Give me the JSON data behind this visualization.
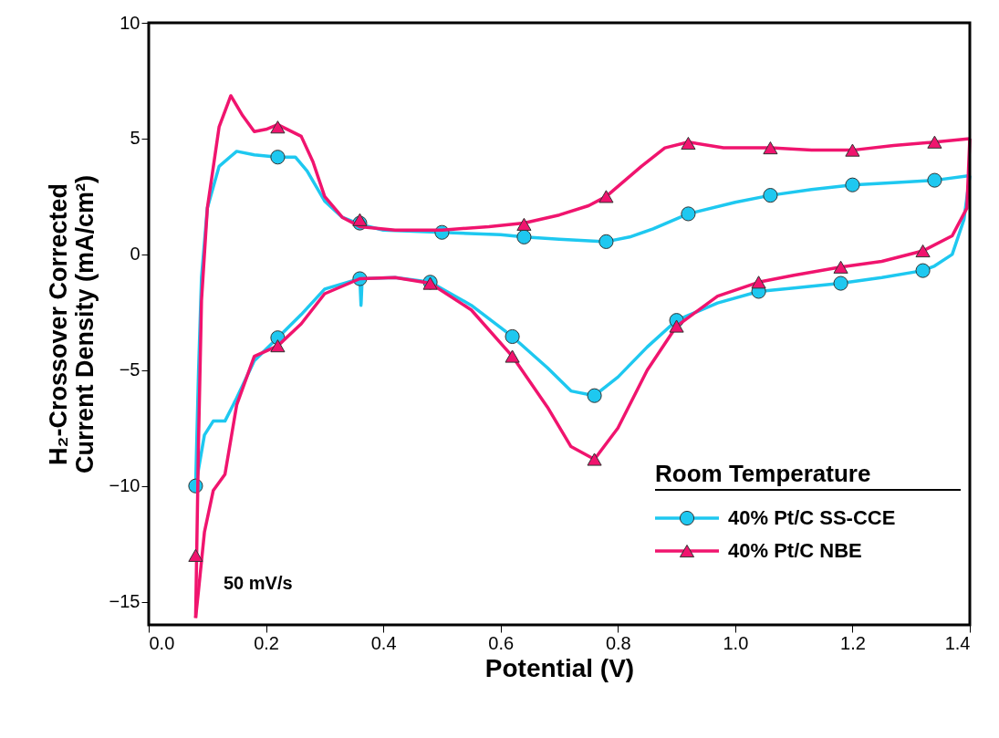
{
  "chart_data": {
    "type": "line",
    "xlabel": "Potential (V)",
    "ylabel": "H₂-Crossover Corrected\nCurrent Density (mA/cm²)",
    "legend_title": "Room Temperature",
    "legend": "bottom right",
    "grid": false,
    "line_style": "solid",
    "annotations": [
      "50 mV/s"
    ],
    "xlim": [
      0,
      1.4
    ],
    "xticks": [
      {
        "value": 0,
        "label": "0.0"
      },
      {
        "value": 0.2,
        "label": "0.2"
      },
      {
        "value": 0.4,
        "label": "0.4"
      },
      {
        "value": 0.6,
        "label": "0.6"
      },
      {
        "value": 0.8,
        "label": "0.8"
      },
      {
        "value": 1.0,
        "label": "1.0"
      },
      {
        "value": 1.2,
        "label": "1.2"
      },
      {
        "value": 1.4,
        "label": "1.4"
      }
    ],
    "ylim": [
      -16,
      10
    ],
    "yticks": [
      -15,
      -10,
      -5,
      0,
      5,
      10
    ],
    "series": [
      {
        "name": "40% Pt/C SS-CCE",
        "color": "#1ec8f0",
        "type": "line",
        "marker": "none",
        "x": [
          0.08,
          0.085,
          0.09,
          0.1,
          0.12,
          0.15,
          0.18,
          0.22,
          0.25,
          0.27,
          0.3,
          0.33,
          0.36,
          0.4,
          0.5,
          0.6,
          0.64,
          0.7,
          0.78,
          0.82,
          0.86,
          0.92,
          1.0,
          1.06,
          1.13,
          1.2,
          1.27,
          1.34,
          1.4
        ],
        "values": [
          -10,
          -5,
          -1,
          2,
          3.8,
          4.45,
          4.3,
          4.2,
          4.2,
          3.6,
          2.3,
          1.6,
          1.3,
          1.05,
          0.95,
          0.85,
          0.75,
          0.65,
          0.55,
          0.75,
          1.1,
          1.75,
          2.25,
          2.55,
          2.8,
          3.0,
          3.1,
          3.2,
          3.4
        ]
      },
      {
        "color": "#1ec8f0",
        "type": "line",
        "marker": "none",
        "x": [
          0.08,
          0.095,
          0.11,
          0.13,
          0.15,
          0.18,
          0.22,
          0.26,
          0.3,
          0.36,
          0.362,
          0.364,
          0.42,
          0.48,
          0.55,
          0.62,
          0.68,
          0.72,
          0.76,
          0.8,
          0.85,
          0.9,
          0.97,
          1.04,
          1.1,
          1.18,
          1.25,
          1.32,
          1.34,
          1.37,
          1.39,
          1.4
        ],
        "values": [
          -10,
          -7.8,
          -7.2,
          -7.2,
          -6.2,
          -4.6,
          -3.6,
          -2.6,
          -1.5,
          -1.05,
          -2.2,
          -1.05,
          -1.0,
          -1.2,
          -2.2,
          -3.55,
          -4.9,
          -5.9,
          -6.1,
          -5.3,
          -4,
          -2.85,
          -2.1,
          -1.6,
          -1.45,
          -1.25,
          -1.0,
          -0.7,
          -0.5,
          0,
          1.5,
          3.4
        ]
      },
      {
        "color": "#1ec8f0",
        "type": "scatter",
        "marker": "circle",
        "x": [
          0.08,
          0.22,
          0.36,
          0.5,
          0.64,
          0.78,
          0.92,
          1.06,
          1.2,
          1.34,
          1.32,
          1.18,
          1.04,
          0.9,
          0.76,
          0.62,
          0.48,
          0.36,
          0.22
        ],
        "values": [
          -10,
          4.2,
          1.35,
          0.95,
          0.75,
          0.55,
          1.75,
          2.55,
          3.0,
          3.2,
          -0.7,
          -1.25,
          -1.6,
          -2.85,
          -6.1,
          -3.55,
          -1.2,
          -1.05,
          -3.6
        ]
      },
      {
        "name": "40% Pt/C NBE",
        "color": "#f0146e",
        "type": "line",
        "marker": "none",
        "x": [
          0.08,
          0.085,
          0.09,
          0.1,
          0.12,
          0.14,
          0.16,
          0.18,
          0.2,
          0.22,
          0.26,
          0.28,
          0.3,
          0.33,
          0.36,
          0.42,
          0.5,
          0.58,
          0.64,
          0.7,
          0.75,
          0.78,
          0.84,
          0.88,
          0.92,
          0.98,
          1.06,
          1.13,
          1.2,
          1.27,
          1.34,
          1.4
        ],
        "values": [
          -15.7,
          -8,
          -2,
          2,
          5.5,
          6.85,
          6,
          5.3,
          5.4,
          5.6,
          5.1,
          4,
          2.5,
          1.6,
          1.2,
          1.05,
          1.05,
          1.2,
          1.35,
          1.7,
          2.1,
          2.5,
          3.8,
          4.6,
          4.85,
          4.6,
          4.6,
          4.5,
          4.5,
          4.7,
          4.85,
          5.0
        ]
      },
      {
        "color": "#f0146e",
        "type": "line",
        "marker": "none",
        "x": [
          0.08,
          0.085,
          0.095,
          0.11,
          0.13,
          0.15,
          0.18,
          0.22,
          0.26,
          0.3,
          0.36,
          0.42,
          0.48,
          0.55,
          0.62,
          0.68,
          0.72,
          0.76,
          0.8,
          0.85,
          0.9,
          0.97,
          1.04,
          1.1,
          1.18,
          1.25,
          1.32,
          1.37,
          1.395,
          1.4
        ],
        "values": [
          -15.7,
          -14.5,
          -12,
          -10.2,
          -9.5,
          -6.5,
          -4.4,
          -3.95,
          -3,
          -1.7,
          -1.05,
          -1.0,
          -1.25,
          -2.4,
          -4.4,
          -6.6,
          -8.3,
          -8.85,
          -7.5,
          -5,
          -3.1,
          -1.8,
          -1.2,
          -0.9,
          -0.55,
          -0.3,
          0.15,
          0.8,
          2,
          5.0
        ]
      },
      {
        "color": "#f0146e",
        "type": "scatter",
        "marker": "triangle",
        "x": [
          0.08,
          0.22,
          0.36,
          0.64,
          0.78,
          0.92,
          1.06,
          1.2,
          1.34,
          1.32,
          1.18,
          1.04,
          0.9,
          0.76,
          0.62,
          0.48,
          0.22
        ],
        "values": [
          -13,
          5.5,
          1.5,
          1.3,
          2.5,
          4.8,
          4.6,
          4.5,
          4.85,
          0.15,
          -0.55,
          -1.2,
          -3.1,
          -8.85,
          -4.4,
          -1.25,
          -3.95
        ]
      }
    ]
  }
}
